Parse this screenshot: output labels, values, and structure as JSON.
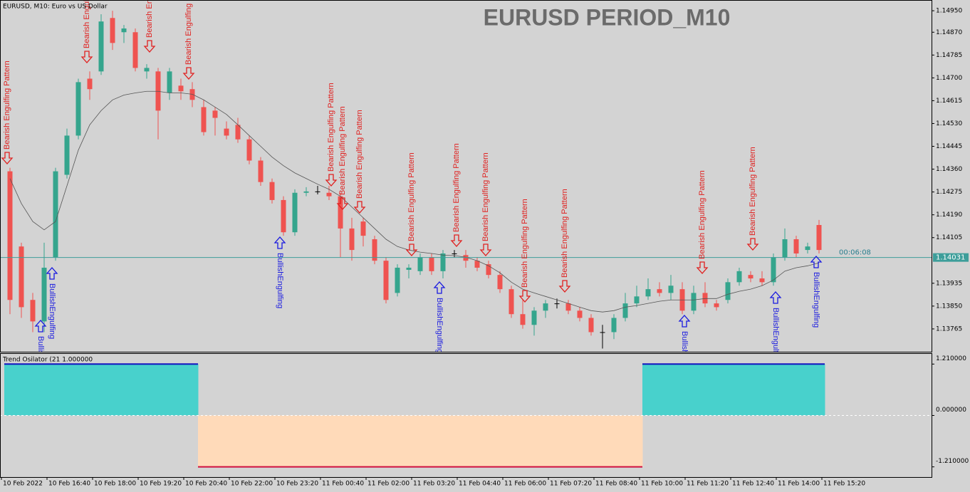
{
  "chart_data": [
    {
      "type": "candlestick",
      "title": "EURUSD  PERIOD_M10",
      "subtitle": "EURUSD, M10:  Euro vs US Dollar",
      "timer": "00:06:08",
      "current_price": 1.14031,
      "up_color": "#35a58d",
      "down_color": "#ef5350",
      "open": [
        1.14352,
        1.14072,
        1.13873,
        1.13793,
        1.14032,
        1.14339,
        1.14485,
        1.14697,
        1.14724,
        1.14923,
        1.1487,
        1.1487,
        1.14724,
        1.14724,
        1.14644,
        1.14671,
        1.14658,
        1.14591,
        1.14578,
        1.14511,
        1.14525,
        1.14471,
        1.14392,
        1.14312,
        1.14245,
        1.14125,
        1.14272,
        1.14277,
        1.14272,
        1.14259,
        1.14139,
        1.14165,
        1.14099,
        1.14019,
        1.13899,
        1.13985,
        1.1398,
        1.14032,
        1.1398,
        1.14046,
        1.1404,
        1.14019,
        1.14006,
        1.13966,
        1.13913,
        1.1382,
        1.1378,
        1.13833,
        1.1386,
        1.1386,
        1.13833,
        1.13806,
        1.13753,
        1.13753,
        1.13806,
        1.1386,
        1.13886,
        1.13913,
        1.13899,
        1.13913,
        1.13833,
        1.13899,
        1.1386,
        1.13873,
        1.13939,
        1.13966,
        1.13953,
        1.13939,
        1.14032,
        1.14099,
        1.14059,
        1.14152
      ],
      "high": [
        1.14365,
        1.14086,
        1.13899,
        1.14086,
        1.14365,
        1.14511,
        1.14697,
        1.14724,
        1.14937,
        1.1495,
        1.14897,
        1.14884,
        1.14751,
        1.14737,
        1.14737,
        1.14697,
        1.14684,
        1.14618,
        1.14591,
        1.14538,
        1.14551,
        1.14485,
        1.14405,
        1.14325,
        1.14259,
        1.14285,
        1.14293,
        1.14298,
        1.14298,
        1.14272,
        1.14179,
        1.14179,
        1.14112,
        1.14032,
        1.14006,
        1.14006,
        1.14046,
        1.14046,
        1.14059,
        1.14059,
        1.14059,
        1.14032,
        1.14019,
        1.1398,
        1.13926,
        1.13873,
        1.13846,
        1.13873,
        1.13878,
        1.13873,
        1.13846,
        1.1382,
        1.1378,
        1.1382,
        1.13899,
        1.13926,
        1.13953,
        1.13939,
        1.13966,
        1.13939,
        1.13926,
        1.13939,
        1.13873,
        1.13953,
        1.13993,
        1.1398,
        1.1398,
        1.14046,
        1.14139,
        1.14112,
        1.14086,
        1.14171
      ],
      "low": [
        1.1382,
        1.13806,
        1.13753,
        1.13753,
        1.14019,
        1.14325,
        1.14471,
        1.14618,
        1.14711,
        1.14804,
        1.1483,
        1.14724,
        1.14697,
        1.14471,
        1.14618,
        1.14618,
        1.14591,
        1.14485,
        1.14485,
        1.14471,
        1.14458,
        1.14378,
        1.14298,
        1.14232,
        1.14112,
        1.14112,
        1.14259,
        1.14266,
        1.14245,
        1.14032,
        1.14019,
        1.14072,
        1.14006,
        1.1386,
        1.13886,
        1.13953,
        1.13966,
        1.13966,
        1.13953,
        1.14032,
        1.13993,
        1.1398,
        1.13953,
        1.13899,
        1.13806,
        1.13766,
        1.1374,
        1.13806,
        1.13841,
        1.1382,
        1.13793,
        1.1374,
        1.13692,
        1.13727,
        1.13793,
        1.13846,
        1.13873,
        1.13886,
        1.13873,
        1.1382,
        1.1382,
        1.13846,
        1.13833,
        1.1386,
        1.13926,
        1.13939,
        1.13926,
        1.13926,
        1.14019,
        1.14032,
        1.14046,
        1.14046
      ],
      "close": [
        1.13873,
        1.13846,
        1.13793,
        1.13993,
        1.14352,
        1.14485,
        1.14684,
        1.14658,
        1.1491,
        1.1483,
        1.14884,
        1.14737,
        1.14737,
        1.14578,
        1.14724,
        1.1465,
        1.14618,
        1.14498,
        1.14551,
        1.14485,
        1.14471,
        1.14392,
        1.14312,
        1.14245,
        1.14125,
        1.14272,
        1.14277,
        1.14277,
        1.14259,
        1.14139,
        1.14059,
        1.14112,
        1.14019,
        1.13873,
        1.13993,
        1.13993,
        1.14032,
        1.1398,
        1.14046,
        1.14046,
        1.14019,
        1.13993,
        1.13966,
        1.13913,
        1.1382,
        1.1378,
        1.13833,
        1.1386,
        1.1386,
        1.13833,
        1.13806,
        1.13753,
        1.13753,
        1.13806,
        1.1386,
        1.13886,
        1.13913,
        1.13899,
        1.13926,
        1.13833,
        1.13899,
        1.1386,
        1.13846,
        1.13939,
        1.1398,
        1.13953,
        1.13939,
        1.14032,
        1.14099,
        1.14046,
        1.14072,
        1.14059
      ],
      "moving_average": {
        "color": "#555555",
        "values": [
          1.14325,
          1.14232,
          1.14165,
          1.14134,
          1.14165,
          1.14298,
          1.14431,
          1.14525,
          1.14578,
          1.14618,
          1.14636,
          1.14644,
          1.1465,
          1.1465,
          1.14644,
          1.14644,
          1.14639,
          1.14618,
          1.14591,
          1.14564,
          1.14525,
          1.14485,
          1.14445,
          1.14405,
          1.14373,
          1.14346,
          1.14325,
          1.14304,
          1.14285,
          1.14259,
          1.14219,
          1.14179,
          1.14139,
          1.14099,
          1.14072,
          1.14059,
          1.14051,
          1.14046,
          1.1404,
          1.14038,
          1.14032,
          1.14019,
          1.14,
          1.13974,
          1.13939,
          1.13913,
          1.13899,
          1.13886,
          1.13873,
          1.1386,
          1.13846,
          1.13833,
          1.13828,
          1.13833,
          1.13846,
          1.13852,
          1.1386,
          1.13868,
          1.13873,
          1.13873,
          1.13873,
          1.13878,
          1.13878,
          1.13894,
          1.13905,
          1.13913,
          1.13926,
          1.13947,
          1.1398,
          1.13993,
          1.14,
          1.14011
        ]
      },
      "annotations": [
        "Bearish Engulfing Pattern",
        "Bearish Engulfing Pattern",
        "Bearish Engulfing Pattern",
        "Bearish Engulfing Pattern",
        "Bearish Engulfing Pattern",
        "Bearish Engulfing Pattern",
        "Bearish Engulfing Pattern",
        "Bearish Engulfing Pattern",
        "Bearish Engulfing Pattern",
        "Bearish Engulfing Pattern",
        "Bearish Engulfing Pattern",
        "Bearish Engulfing Pattern",
        "Bearish Engulfing Pattern",
        "Bearish Engulfing Pattern",
        "BullishEngulfing",
        "BullishEngulfing",
        "BullishEngulfing",
        "BullishEngulfing",
        "BullishEngulfing",
        "BullishEngulfing",
        "BullishEngulfing"
      ],
      "xlim": [
        -0.875,
        80.875
      ],
      "xticks": [
        {
          "value": 1,
          "label": "10 Feb 2022"
        },
        {
          "value": 5,
          "label": "10 Feb 16:40"
        },
        {
          "value": 9,
          "label": "10 Feb 18:00"
        },
        {
          "value": 13,
          "label": "10 Feb 19:20"
        },
        {
          "value": 17,
          "label": "10 Feb 20:40"
        },
        {
          "value": 21,
          "label": "10 Feb 22:00"
        },
        {
          "value": 25,
          "label": "10 Feb 23:20"
        },
        {
          "value": 29,
          "label": "11 Feb 00:40"
        },
        {
          "value": 33,
          "label": "11 Feb 02:00"
        },
        {
          "value": 37,
          "label": "11 Feb 03:20"
        },
        {
          "value": 41,
          "label": "11 Feb 04:40"
        },
        {
          "value": 45,
          "label": "11 Feb 06:00"
        },
        {
          "value": 49,
          "label": "11 Feb 07:20"
        },
        {
          "value": 53,
          "label": "11 Feb 08:40"
        },
        {
          "value": 57,
          "label": "11 Feb 10:00"
        },
        {
          "value": 61,
          "label": "11 Feb 11:20"
        },
        {
          "value": 65,
          "label": "11 Feb 12:40"
        },
        {
          "value": 69,
          "label": "11 Feb 14:00"
        },
        {
          "value": 73,
          "label": "11 Feb 15:20"
        }
      ],
      "ylim": [
        1.1368,
        1.1499
      ],
      "yticks": [
        {
          "value": 1.1495,
          "label": "1.14950"
        },
        {
          "value": 1.1487,
          "label": "1.14870"
        },
        1.14785,
        {
          "value": 1.147,
          "label": "1.14700"
        },
        1.14615,
        {
          "value": 1.1453,
          "label": "1.14530"
        },
        1.14445,
        {
          "value": 1.1436,
          "label": "1.14360"
        },
        1.14275,
        {
          "value": 1.1419,
          "label": "1.14190"
        },
        1.14105,
        1.13935,
        {
          "value": 1.1385,
          "label": "1.13850"
        },
        1.13765
      ]
    },
    {
      "type": "area",
      "title": "Trend Osilator (21 1.000000",
      "positive_color": "#48d1cc",
      "negative_color": "#ffdab9",
      "values": [
        1.21,
        1.21,
        1.21,
        1.21,
        1.21,
        1.21,
        1.21,
        1.21,
        1.21,
        1.21,
        1.21,
        1.21,
        1.21,
        1.21,
        1.21,
        1.21,
        1.21,
        -1.21,
        -1.21,
        -1.21,
        -1.21,
        -1.21,
        -1.21,
        -1.21,
        -1.21,
        -1.21,
        -1.21,
        -1.21,
        -1.21,
        -1.21,
        -1.21,
        -1.21,
        -1.21,
        -1.21,
        -1.21,
        -1.21,
        -1.21,
        -1.21,
        -1.21,
        -1.21,
        -1.21,
        -1.21,
        -1.21,
        -1.21,
        -1.21,
        -1.21,
        -1.21,
        -1.21,
        -1.21,
        -1.21,
        -1.21,
        -1.21,
        -1.21,
        -1.21,
        -1.21,
        -1.21,
        1.21,
        1.21,
        1.21,
        1.21,
        1.21,
        1.21,
        1.21,
        1.21,
        1.21,
        1.21,
        1.21,
        1.21,
        1.21,
        1.21,
        1.21,
        1.21
      ],
      "ylim": [
        -1.45,
        1.45
      ],
      "yticks": [
        {
          "value": 1.21,
          "label": "1.210000"
        },
        {
          "value": 0,
          "label": "0.000000"
        },
        {
          "value": -1.21,
          "label": "-1.210000"
        }
      ]
    }
  ]
}
